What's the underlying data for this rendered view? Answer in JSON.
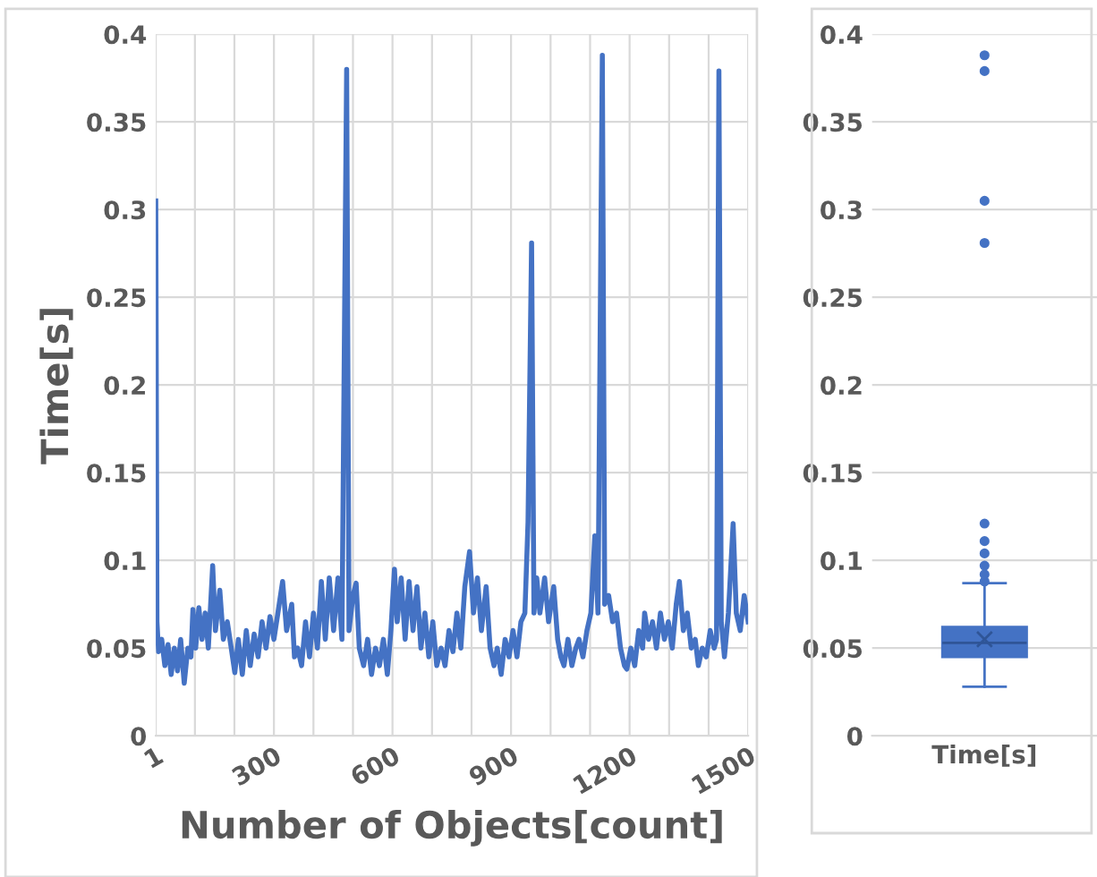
{
  "chart_data": [
    {
      "type": "line",
      "xlabel": "Number of Objects[count]",
      "ylabel": "Time[s]",
      "grid": true,
      "legend": false,
      "marker": "none",
      "line_style": "solid",
      "xlim": [
        1,
        1500
      ],
      "ylim": [
        0,
        0.4
      ],
      "xticks": [
        {
          "value": 1,
          "label": "1"
        },
        {
          "value": 100,
          "label": null
        },
        {
          "value": 200,
          "label": null
        },
        300,
        {
          "value": 400,
          "label": null
        },
        {
          "value": 500,
          "label": null
        },
        600,
        {
          "value": 700,
          "label": null
        },
        {
          "value": 800,
          "label": null
        },
        900,
        {
          "value": 1000,
          "label": null
        },
        {
          "value": 1100,
          "label": null
        },
        1200,
        {
          "value": 1300,
          "label": null
        },
        {
          "value": 1400,
          "label": null
        },
        1500
      ],
      "yticks": [
        0,
        0.05,
        0.1,
        0.15,
        0.2,
        0.25,
        0.3,
        0.35,
        0.4
      ],
      "series": [
        {
          "color": "#4472c4",
          "x": [
            1,
            4,
            8,
            16,
            24,
            32,
            40,
            48,
            56,
            64,
            73,
            82,
            90,
            95,
            102,
            110,
            118,
            126,
            134,
            145,
            152,
            163,
            172,
            182,
            192,
            201,
            210,
            220,
            230,
            240,
            250,
            260,
            270,
            280,
            290,
            300,
            310,
            322,
            332,
            345,
            352,
            360,
            370,
            380,
            390,
            400,
            410,
            420,
            430,
            440,
            451,
            462,
            472,
            484,
            490,
            500,
            508,
            516,
            527,
            537,
            547,
            557,
            567,
            577,
            587,
            596,
            605,
            612,
            622,
            632,
            642,
            652,
            662,
            672,
            682,
            692,
            702,
            712,
            723,
            733,
            743,
            753,
            763,
            773,
            783,
            795,
            805,
            815,
            825,
            837,
            847,
            857,
            865,
            875,
            885,
            895,
            905,
            915,
            925,
            935,
            943,
            952,
            958,
            965,
            973,
            985,
            995,
            1008,
            1018,
            1026,
            1034,
            1044,
            1054,
            1064,
            1072,
            1082,
            1092,
            1102,
            1112,
            1120,
            1131,
            1137,
            1147,
            1157,
            1167,
            1177,
            1187,
            1193,
            1203,
            1213,
            1223,
            1233,
            1238,
            1248,
            1258,
            1268,
            1278,
            1288,
            1298,
            1308,
            1318,
            1326,
            1336,
            1346,
            1356,
            1366,
            1374,
            1384,
            1394,
            1404,
            1414,
            1420,
            1426,
            1432,
            1440,
            1450,
            1462,
            1470,
            1480,
            1490,
            1500
          ],
          "values": [
            0.305,
            0.065,
            0.048,
            0.055,
            0.04,
            0.052,
            0.035,
            0.05,
            0.037,
            0.055,
            0.03,
            0.05,
            0.045,
            0.072,
            0.05,
            0.073,
            0.055,
            0.07,
            0.05,
            0.097,
            0.06,
            0.083,
            0.055,
            0.065,
            0.05,
            0.036,
            0.055,
            0.035,
            0.06,
            0.04,
            0.058,
            0.045,
            0.065,
            0.05,
            0.068,
            0.055,
            0.07,
            0.088,
            0.06,
            0.075,
            0.045,
            0.05,
            0.04,
            0.065,
            0.045,
            0.07,
            0.05,
            0.088,
            0.055,
            0.09,
            0.06,
            0.09,
            0.055,
            0.38,
            0.06,
            0.08,
            0.087,
            0.05,
            0.04,
            0.055,
            0.035,
            0.05,
            0.04,
            0.055,
            0.035,
            0.06,
            0.095,
            0.065,
            0.09,
            0.055,
            0.088,
            0.06,
            0.085,
            0.05,
            0.07,
            0.045,
            0.065,
            0.04,
            0.05,
            0.04,
            0.06,
            0.048,
            0.07,
            0.05,
            0.085,
            0.105,
            0.07,
            0.09,
            0.06,
            0.085,
            0.05,
            0.04,
            0.05,
            0.035,
            0.055,
            0.045,
            0.06,
            0.045,
            0.065,
            0.07,
            0.122,
            0.281,
            0.07,
            0.09,
            0.07,
            0.09,
            0.065,
            0.085,
            0.055,
            0.045,
            0.04,
            0.055,
            0.04,
            0.05,
            0.055,
            0.045,
            0.06,
            0.07,
            0.114,
            0.07,
            0.388,
            0.075,
            0.08,
            0.065,
            0.07,
            0.05,
            0.04,
            0.038,
            0.05,
            0.04,
            0.06,
            0.05,
            0.07,
            0.055,
            0.065,
            0.05,
            0.07,
            0.055,
            0.065,
            0.05,
            0.075,
            0.088,
            0.06,
            0.07,
            0.05,
            0.055,
            0.04,
            0.05,
            0.045,
            0.06,
            0.05,
            0.055,
            0.379,
            0.065,
            0.045,
            0.07,
            0.121,
            0.07,
            0.06,
            0.08,
            0.065
          ]
        }
      ]
    },
    {
      "type": "box",
      "grid": "y",
      "categories": [
        "Time[s]"
      ],
      "ylim": [
        0,
        0.4
      ],
      "yticks": [
        0,
        0.05,
        0.1,
        0.15,
        0.2,
        0.25,
        0.3,
        0.35,
        0.4
      ],
      "series": [
        {
          "color": "#4472c4",
          "boxes": [
            {
              "low": 0.028,
              "q1": 0.045,
              "median": 0.053,
              "q3": 0.062,
              "high": 0.087,
              "mean": 0.055,
              "outliers": [
                0.088,
                0.092,
                0.097,
                0.104,
                0.111,
                0.121,
                0.281,
                0.305,
                0.379,
                0.388
              ]
            }
          ]
        }
      ]
    }
  ]
}
